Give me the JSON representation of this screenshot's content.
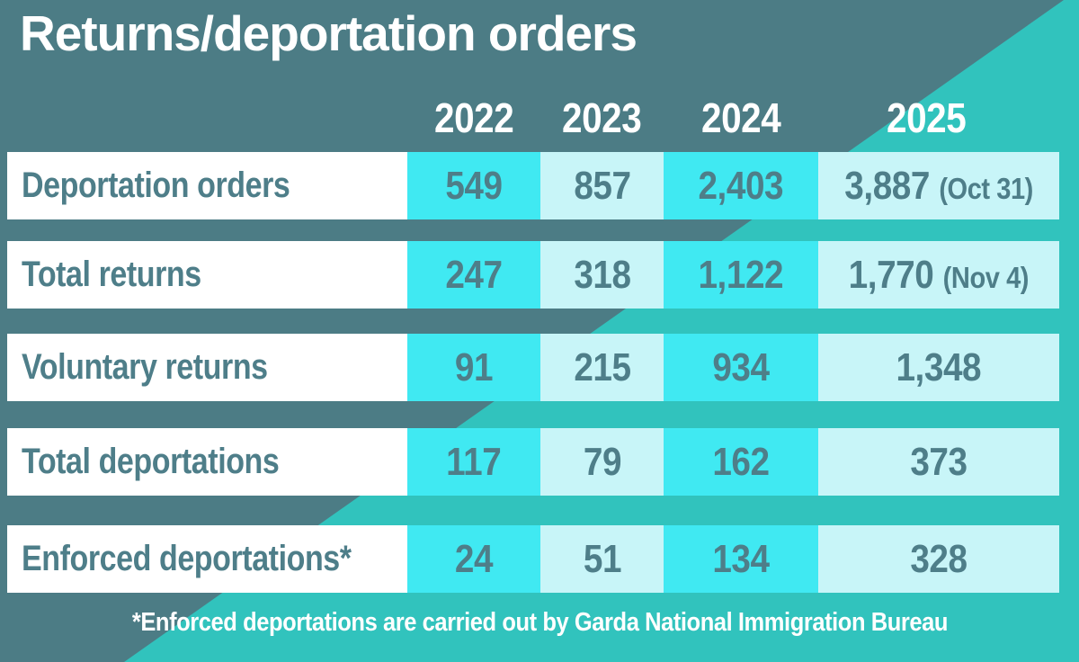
{
  "title": "Returns/deportation orders",
  "footnote": "*Enforced deportations are carried out by Garda National Immigration Bureau",
  "colors": {
    "background_dark_teal": "#4C7C85",
    "background_turquoise": "#31C3BD",
    "cell_bright_cyan": "#40E9F2",
    "cell_pale_cyan": "#C8F5F8",
    "text_teal": "#4E7E89",
    "text_white": "#FFFFFF"
  },
  "chart_data": {
    "type": "table",
    "title": "Returns/deportation orders",
    "columns": [
      "2022",
      "2023",
      "2024",
      "2025"
    ],
    "rows": [
      {
        "label": "Deportation orders",
        "values": [
          "549",
          "857",
          "2,403",
          "3,887"
        ],
        "note": "(Oct 31)"
      },
      {
        "label": "Total returns",
        "values": [
          "247",
          "318",
          "1,122",
          "1,770"
        ],
        "note": "(Nov 4)"
      },
      {
        "label": "Voluntary returns",
        "values": [
          "91",
          "215",
          "934",
          "1,348"
        ],
        "note": ""
      },
      {
        "label": "Total deportations",
        "values": [
          "117",
          "79",
          "162",
          "373"
        ],
        "note": ""
      },
      {
        "label": "Enforced deportations*",
        "values": [
          "24",
          "51",
          "134",
          "328"
        ],
        "note": ""
      }
    ],
    "footnote": "*Enforced deportations are carried out by Garda National Immigration Bureau"
  }
}
